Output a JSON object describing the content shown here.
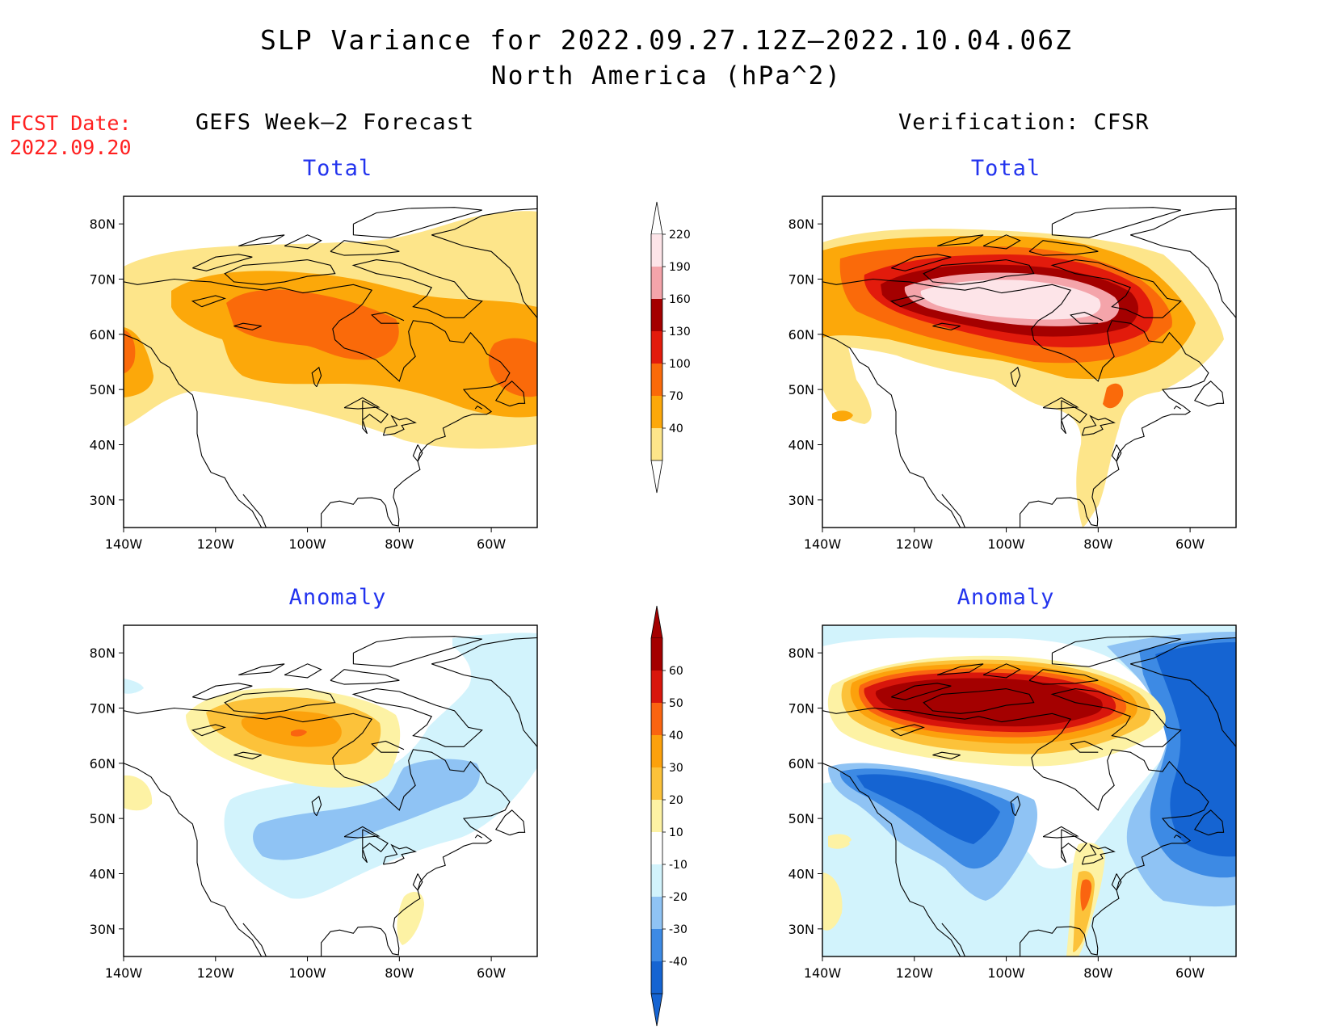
{
  "title": {
    "line1": "SLP Variance for 2022.09.27.12Z–2022.10.04.06Z",
    "line2": "North America (hPa^2)"
  },
  "fcst": {
    "label": "FCST Date:",
    "date": "2022.09.20"
  },
  "columns": {
    "left": "GEFS Week–2 Forecast",
    "right": "Verification: CFSR"
  },
  "panels": {
    "tl": {
      "subtitle": "Total"
    },
    "tr": {
      "subtitle": "Total"
    },
    "bl": {
      "subtitle": "Anomaly"
    },
    "br": {
      "subtitle": "Anomaly"
    }
  },
  "map_extent": {
    "lon": [
      -140,
      -50
    ],
    "lat": [
      25,
      85
    ]
  },
  "axes": {
    "lat_labels": [
      "30N",
      "40N",
      "50N",
      "60N",
      "70N",
      "80N"
    ],
    "lon_labels": [
      "140W",
      "120W",
      "100W",
      "80W",
      "60W"
    ]
  },
  "colorbar_total": {
    "labels": [
      "40",
      "70",
      "100",
      "130",
      "160",
      "190",
      "220"
    ],
    "colors": [
      "#fde58a",
      "#fca80a",
      "#fa6a0a",
      "#e21b0c",
      "#a40000",
      "#f4a4aa",
      "#fde4e8"
    ]
  },
  "colorbar_anom": {
    "labels": [
      "-40",
      "-30",
      "-20",
      "-10",
      "10",
      "20",
      "30",
      "40",
      "50",
      "60"
    ],
    "colors": [
      "#1564d2",
      "#3d8ae4",
      "#8fc3f4",
      "#d2f3fc",
      "#ffffff",
      "#fdf2a4",
      "#fcc23a",
      "#fca10c",
      "#fa6410",
      "#d8160c",
      "#a40000"
    ]
  },
  "colors": {
    "title_red": "#ff2020",
    "subtitle_blue": "#2233ee"
  }
}
